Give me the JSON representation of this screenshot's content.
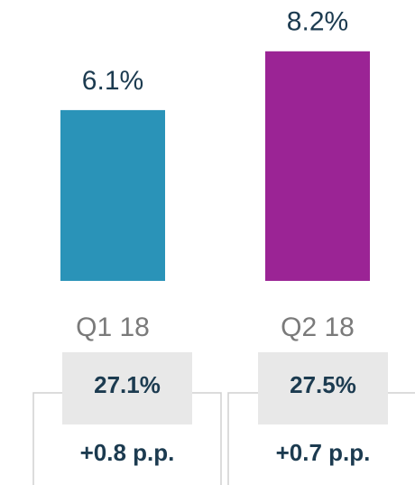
{
  "chart_data": {
    "type": "bar",
    "categories": [
      "Q1 18",
      "Q2 18"
    ],
    "values": [
      6.1,
      8.2
    ],
    "value_labels": [
      "6.1%",
      "8.2%"
    ],
    "colors": [
      "#2a93b8",
      "#9b2495"
    ],
    "table": {
      "rows": [
        [
          "27.1%",
          "27.5%"
        ],
        [
          "+0.8 p.p.",
          "+0.7 p.p."
        ]
      ]
    }
  }
}
